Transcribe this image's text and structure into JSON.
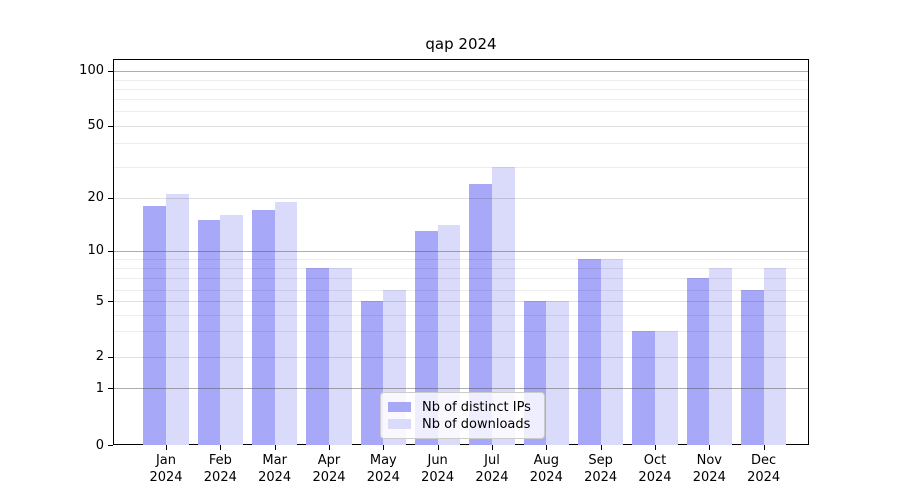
{
  "title": "qap 2024",
  "colors": {
    "ips_bar": "#a8a8f8",
    "downloads_bar": "#dadafa",
    "grid_major": "#b2b2b2",
    "grid_minor_labeled": "#dedede",
    "grid_minor": "#ececec",
    "axis": "#000000"
  },
  "legend": {
    "items": [
      {
        "label": "Nb of distinct IPs",
        "series": "ips_bar"
      },
      {
        "label": "Nb of downloads",
        "series": "downloads_bar"
      }
    ]
  },
  "y_axis": {
    "tick_labels": [
      "100",
      "50",
      "20",
      "10",
      "5",
      "2",
      "1",
      "0"
    ],
    "tick_values": [
      100,
      50,
      20,
      10,
      5,
      2,
      1,
      0
    ]
  },
  "x_axis": {
    "months": [
      "Jan",
      "Feb",
      "Mar",
      "Apr",
      "May",
      "Jun",
      "Jul",
      "Aug",
      "Sep",
      "Oct",
      "Nov",
      "Dec"
    ],
    "year": "2024"
  },
  "chart_data": {
    "type": "bar",
    "title": "qap 2024",
    "categories": [
      "Jan 2024",
      "Feb 2024",
      "Mar 2024",
      "Apr 2024",
      "May 2024",
      "Jun 2024",
      "Jul 2024",
      "Aug 2024",
      "Sep 2024",
      "Oct 2024",
      "Nov 2024",
      "Dec 2024"
    ],
    "series": [
      {
        "name": "Nb of distinct IPs",
        "color": "#a8a8f8",
        "values": [
          18,
          15,
          17,
          8,
          5,
          13,
          24,
          5,
          9,
          3,
          7,
          6
        ]
      },
      {
        "name": "Nb of downloads",
        "color": "#dadafa",
        "values": [
          21,
          16,
          19,
          8,
          6,
          14,
          30,
          5,
          9,
          3,
          8,
          8
        ]
      }
    ],
    "xlabel": "",
    "ylabel": "",
    "yscale": "log-like",
    "ylim": [
      0,
      100
    ],
    "y_ticks_labeled": [
      0,
      1,
      2,
      5,
      10,
      20,
      50,
      100
    ],
    "grid": true,
    "legend_position": "bottom-center"
  }
}
